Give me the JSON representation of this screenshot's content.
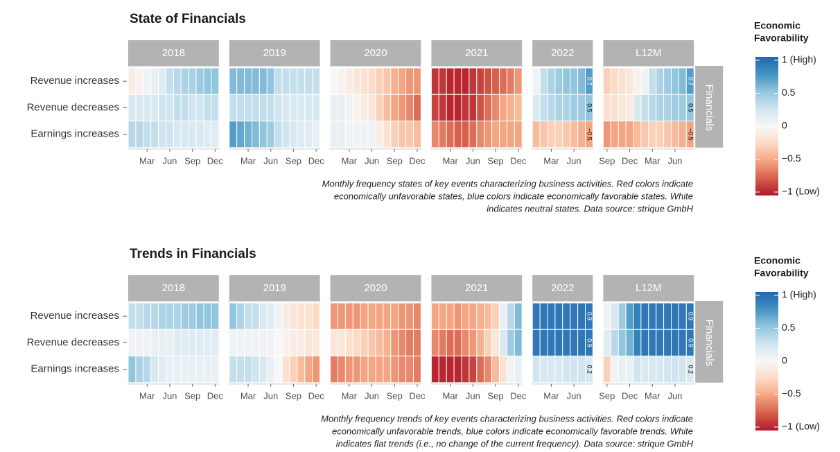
{
  "chart_data": [
    {
      "type": "heatmap",
      "title": "State of Financials",
      "caption": [
        "Monthly frequency states of key events characterizing business activities. Red colors indicate",
        "economically unfavorable states, blue colors indicate economically favorable states. White",
        "indicates neutral states. Data source: strique GmbH"
      ],
      "rows": [
        "Revenue increases",
        "Revenue decreases",
        "Earnings increases"
      ],
      "strip": "Financials",
      "legend": {
        "title": [
          "Economic",
          "Favorability"
        ],
        "ticks": [
          {
            "value": 1,
            "label": "1 (High)"
          },
          0.5,
          0,
          {
            "value": -0.5,
            "label": "−0.5"
          },
          {
            "value": -1,
            "label": "−1 (Low)"
          }
        ]
      },
      "clim": [
        -1,
        1
      ],
      "colorscale": [
        "#b2182b",
        "#d6604d",
        "#f4a582",
        "#fddbc7",
        "#f7f7f7",
        "#d1e5f0",
        "#92c5de",
        "#4393c3",
        "#2166ac"
      ],
      "facets": [
        {
          "label": "2018",
          "categories": [
            null,
            null,
            "Mar",
            null,
            null,
            "Jun",
            null,
            null,
            "Sep",
            null,
            null,
            "Dec"
          ],
          "values": [
            [
              -0.1,
              -0.05,
              0.05,
              0.1,
              0.15,
              0.3,
              0.35,
              0.4,
              0.4,
              0.45,
              0.5,
              0.5
            ],
            [
              0.2,
              0.2,
              0.2,
              0.2,
              0.25,
              0.25,
              0.3,
              0.3,
              0.25,
              0.25,
              0.3,
              0.3
            ],
            [
              0.35,
              0.35,
              0.3,
              0.3,
              0.25,
              0.25,
              0.2,
              0.2,
              0.2,
              0.2,
              0.15,
              0.15
            ]
          ]
        },
        {
          "label": "2019",
          "categories": [
            null,
            null,
            "Mar",
            null,
            null,
            "Jun",
            null,
            null,
            "Sep",
            null,
            null,
            "Dec"
          ],
          "values": [
            [
              0.55,
              0.55,
              0.55,
              0.55,
              0.55,
              0.5,
              0.3,
              0.3,
              0.3,
              0.3,
              0.3,
              0.3
            ],
            [
              0.3,
              0.3,
              0.3,
              0.3,
              0.3,
              0.3,
              0.25,
              0.2,
              0.2,
              0.2,
              0.2,
              0.2
            ],
            [
              0.7,
              0.65,
              0.6,
              0.55,
              0.5,
              0.45,
              0.3,
              0.25,
              0.2,
              0.15,
              0.15,
              0.1
            ]
          ]
        },
        {
          "label": "2020",
          "categories": [
            null,
            null,
            "Mar",
            null,
            null,
            "Jun",
            null,
            null,
            "Sep",
            null,
            null,
            "Dec"
          ],
          "values": [
            [
              0,
              -0.05,
              -0.1,
              -0.15,
              -0.2,
              -0.25,
              -0.3,
              -0.35,
              -0.45,
              -0.5,
              -0.55,
              -0.55
            ],
            [
              0.1,
              0.1,
              0.05,
              -0.05,
              -0.1,
              -0.15,
              -0.3,
              -0.4,
              -0.5,
              -0.55,
              -0.6,
              -0.7
            ],
            [
              0.1,
              0.1,
              0.05,
              0.05,
              0.05,
              0.05,
              -0.1,
              -0.2,
              -0.3,
              -0.35,
              -0.35,
              -0.4
            ]
          ]
        },
        {
          "label": "2021",
          "categories": [
            null,
            null,
            "Mar",
            null,
            null,
            "Jun",
            null,
            null,
            "Sep",
            null,
            null,
            "Dec"
          ],
          "values": [
            [
              -0.9,
              -0.9,
              -0.95,
              -0.95,
              -0.95,
              -0.9,
              -0.85,
              -0.8,
              -0.75,
              -0.7,
              -0.65,
              -0.55
            ],
            [
              -0.85,
              -0.9,
              -0.95,
              -0.95,
              -0.9,
              -0.9,
              -0.8,
              -0.7,
              -0.6,
              -0.5,
              -0.45,
              -0.4
            ],
            [
              -0.6,
              -0.65,
              -0.7,
              -0.75,
              -0.75,
              -0.7,
              -0.6,
              -0.55,
              -0.5,
              -0.5,
              -0.5,
              -0.5
            ]
          ]
        },
        {
          "label": "2022",
          "categories": [
            null,
            null,
            "Mar",
            null,
            null,
            "Jun",
            null,
            null
          ],
          "values": [
            [
              0.05,
              0.3,
              0.4,
              0.45,
              0.5,
              0.5,
              0.55,
              0.7
            ],
            [
              0.2,
              0.3,
              0.35,
              0.4,
              0.4,
              0.45,
              0.45,
              0.5
            ],
            [
              -0.4,
              -0.35,
              -0.3,
              -0.3,
              -0.35,
              -0.4,
              -0.45,
              -0.5
            ]
          ],
          "value_labels": [
            [
              null,
              null,
              null,
              null,
              null,
              null,
              null,
              "0.7"
            ],
            [
              null,
              null,
              null,
              null,
              null,
              null,
              null,
              "0.5"
            ],
            [
              null,
              null,
              null,
              null,
              null,
              null,
              null,
              "−0.5"
            ]
          ]
        },
        {
          "label": "L12M",
          "categories": [
            "Sep",
            null,
            null,
            "Dec",
            null,
            null,
            "Mar",
            null,
            null,
            "Jun",
            null,
            null
          ],
          "values": [
            [
              -0.3,
              -0.25,
              -0.2,
              -0.15,
              -0.05,
              0.05,
              0.3,
              0.4,
              0.45,
              0.5,
              0.55,
              0.7
            ],
            [
              -0.2,
              -0.2,
              -0.15,
              -0.1,
              0.2,
              0.3,
              0.35,
              0.4,
              0.4,
              0.45,
              0.45,
              0.5
            ],
            [
              -0.55,
              -0.5,
              -0.5,
              -0.5,
              -0.4,
              -0.35,
              -0.3,
              -0.3,
              -0.35,
              -0.4,
              -0.45,
              -0.5
            ]
          ],
          "value_labels": [
            [
              null,
              null,
              null,
              null,
              null,
              null,
              null,
              null,
              null,
              null,
              null,
              "0.7"
            ],
            [
              null,
              null,
              null,
              null,
              null,
              null,
              null,
              null,
              null,
              null,
              null,
              "0.5"
            ],
            [
              null,
              null,
              null,
              null,
              null,
              null,
              null,
              null,
              null,
              null,
              null,
              "−0.5"
            ]
          ]
        }
      ]
    },
    {
      "type": "heatmap",
      "title": "Trends in Financials",
      "caption": [
        "Monthly frequency trends of key events characterizing business activities. Red colors indicate",
        "economically unfavorable trends, blue colors indicate economically favorable trends. White",
        "indicates flat trends (i.e., no change of the current frequency). Data source: strique GmbH"
      ],
      "rows": [
        "Revenue increases",
        "Revenue decreases",
        "Earnings increases"
      ],
      "strip": "Financials",
      "legend": {
        "title": [
          "Economic",
          "Favorability"
        ],
        "ticks": [
          {
            "value": 1,
            "label": "1 (High)"
          },
          0.5,
          0,
          {
            "value": -0.5,
            "label": "−0.5"
          },
          {
            "value": -1,
            "label": "−1 (Low)"
          }
        ]
      },
      "clim": [
        -1,
        1
      ],
      "colorscale": [
        "#b2182b",
        "#d6604d",
        "#f4a582",
        "#fddbc7",
        "#f7f7f7",
        "#d1e5f0",
        "#92c5de",
        "#4393c3",
        "#2166ac"
      ],
      "facets": [
        {
          "label": "2018",
          "categories": [
            null,
            null,
            "Mar",
            null,
            null,
            "Jun",
            null,
            null,
            "Sep",
            null,
            null,
            "Dec"
          ],
          "values": [
            [
              0.3,
              0.3,
              0.35,
              0.35,
              0.4,
              0.4,
              0.4,
              0.45,
              0.45,
              0.5,
              0.5,
              0.5
            ],
            [
              0.05,
              0.05,
              0.05,
              0.1,
              0.1,
              0.1,
              0.15,
              0.15,
              0.15,
              0.15,
              0.15,
              0.15
            ],
            [
              0.5,
              0.4,
              0.35,
              0.2,
              0.15,
              0.1,
              0.1,
              0.1,
              0.1,
              0.1,
              0.1,
              0.1
            ]
          ]
        },
        {
          "label": "2019",
          "categories": [
            null,
            null,
            "Mar",
            null,
            null,
            "Jun",
            null,
            null,
            "Sep",
            null,
            null,
            "Dec"
          ],
          "values": [
            [
              0.5,
              0.4,
              0.3,
              0.3,
              0.2,
              0.15,
              0.05,
              -0.1,
              -0.15,
              -0.2,
              -0.2,
              -0.25
            ],
            [
              0.05,
              0.05,
              0.05,
              0.05,
              0.05,
              0.05,
              0,
              -0.05,
              -0.1,
              -0.1,
              -0.15,
              -0.15
            ],
            [
              0.3,
              0.3,
              0.3,
              0.25,
              0.2,
              0.1,
              0,
              -0.2,
              -0.3,
              -0.4,
              -0.5,
              -0.55
            ]
          ]
        },
        {
          "label": "2020",
          "categories": [
            null,
            null,
            "Mar",
            null,
            null,
            "Jun",
            null,
            null,
            "Sep",
            null,
            null,
            "Dec"
          ],
          "values": [
            [
              -0.55,
              -0.55,
              -0.55,
              -0.55,
              -0.5,
              -0.5,
              -0.5,
              -0.5,
              -0.5,
              -0.55,
              -0.55,
              -0.6
            ],
            [
              -0.15,
              -0.15,
              -0.2,
              -0.25,
              -0.3,
              -0.35,
              -0.4,
              -0.45,
              -0.55,
              -0.6,
              -0.65,
              -0.65
            ],
            [
              -0.65,
              -0.6,
              -0.55,
              -0.55,
              -0.5,
              -0.5,
              -0.5,
              -0.5,
              -0.55,
              -0.6,
              -0.6,
              -0.65
            ]
          ]
        },
        {
          "label": "2021",
          "categories": [
            null,
            null,
            "Mar",
            null,
            null,
            "Jun",
            null,
            null,
            "Sep",
            null,
            null,
            "Dec"
          ],
          "values": [
            [
              -0.5,
              -0.5,
              -0.5,
              -0.55,
              -0.5,
              -0.5,
              -0.45,
              -0.4,
              -0.3,
              0.1,
              0.35,
              0.55
            ],
            [
              -0.6,
              -0.65,
              -0.7,
              -0.7,
              -0.6,
              -0.55,
              -0.45,
              -0.3,
              -0.15,
              0.2,
              0.45,
              0.55
            ],
            [
              -0.95,
              -0.95,
              -0.95,
              -0.95,
              -0.9,
              -0.85,
              -0.7,
              -0.6,
              -0.4,
              -0.2,
              0.05,
              0.1
            ]
          ]
        },
        {
          "label": "2022",
          "categories": [
            null,
            null,
            "Mar",
            null,
            null,
            "Jun",
            null,
            null
          ],
          "values": [
            [
              0.9,
              0.9,
              0.9,
              0.9,
              0.9,
              0.9,
              0.9,
              0.9
            ],
            [
              0.9,
              0.9,
              0.9,
              0.9,
              0.9,
              0.9,
              0.9,
              0.9
            ],
            [
              0.25,
              0.2,
              0.2,
              0.2,
              0.25,
              0.25,
              0.25,
              0.2
            ]
          ],
          "value_labels": [
            [
              null,
              null,
              null,
              null,
              null,
              null,
              null,
              "0.9"
            ],
            [
              null,
              null,
              null,
              null,
              null,
              null,
              null,
              "0.9"
            ],
            [
              null,
              null,
              null,
              null,
              null,
              null,
              null,
              "0.2"
            ]
          ]
        },
        {
          "label": "L12M",
          "categories": [
            "Sep",
            null,
            null,
            "Dec",
            null,
            null,
            "Mar",
            null,
            null,
            "Jun",
            null,
            null
          ],
          "values": [
            [
              0.05,
              0.2,
              0.45,
              0.7,
              0.85,
              0.9,
              0.9,
              0.9,
              0.9,
              0.9,
              0.9,
              0.9
            ],
            [
              0.15,
              0.35,
              0.5,
              0.6,
              0.85,
              0.9,
              0.9,
              0.9,
              0.9,
              0.9,
              0.9,
              0.9
            ],
            [
              -0.3,
              0.05,
              0.1,
              0.1,
              0.25,
              0.2,
              0.2,
              0.2,
              0.25,
              0.25,
              0.25,
              0.2
            ]
          ],
          "value_labels": [
            [
              null,
              null,
              null,
              null,
              null,
              null,
              null,
              null,
              null,
              null,
              null,
              "0.9"
            ],
            [
              null,
              null,
              null,
              null,
              null,
              null,
              null,
              null,
              null,
              null,
              null,
              "0.9"
            ],
            [
              null,
              null,
              null,
              null,
              null,
              null,
              null,
              null,
              null,
              null,
              null,
              "0.2"
            ]
          ]
        }
      ]
    }
  ]
}
